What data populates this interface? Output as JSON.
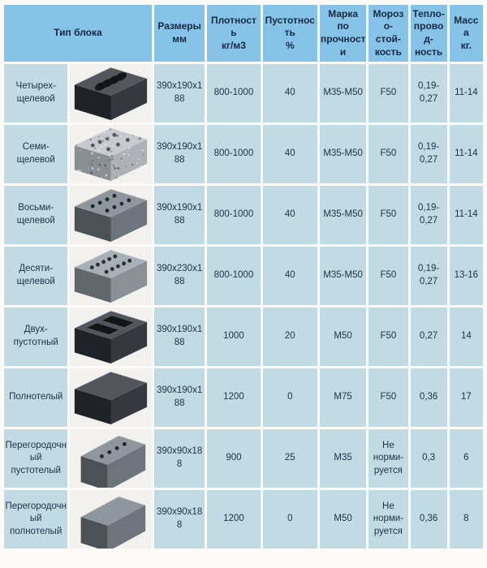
{
  "colors": {
    "page_bg": "#fbfaf7",
    "header_bg": "#87c2e9",
    "cell_bg": "#c0dbe4",
    "photo_bg": "#f3f1ee",
    "text": "#203349"
  },
  "table": {
    "headers": [
      "Тип блока",
      "Размеры\nмм",
      "Плотност\nь\nкг/м3",
      "Пустотнос\nть\n%",
      "Марка\nпо\nпрочност\nи",
      "Мороз\nо-\nстой-\nкость",
      "Тепло-\nпрово\nд-\nность",
      "Масс\nа\nкг."
    ],
    "rows": [
      {
        "type": "Четырех-\nщелевой",
        "photo_icon": "four-slot-block-photo",
        "dimensions": "390х190х1\n88",
        "density": "800-1000",
        "hollowness": "40",
        "strength": "М35-М50",
        "frost": "F50",
        "conductivity": "0,19-\n0,27",
        "mass": "11-14"
      },
      {
        "type": "Семи-\nщелевой",
        "photo_icon": "seven-slot-block-photo",
        "dimensions": "390х190х1\n88",
        "density": "800-1000",
        "hollowness": "40",
        "strength": "М35-М50",
        "frost": "F50",
        "conductivity": "0,19-\n0,27",
        "mass": "11-14"
      },
      {
        "type": "Восьми-\nщелевой",
        "photo_icon": "eight-slot-block-photo",
        "dimensions": "390х190х1\n88",
        "density": "800-1000",
        "hollowness": "40",
        "strength": "М35-М50",
        "frost": "F50",
        "conductivity": "0,19-\n0,27",
        "mass": "11-14"
      },
      {
        "type": "Десяти-\nщелевой",
        "photo_icon": "ten-slot-block-photo",
        "dimensions": "390х230х1\n88",
        "density": "800-1000",
        "hollowness": "40",
        "strength": "М35-М50",
        "frost": "F50",
        "conductivity": "0,19-\n0,27",
        "mass": "13-16"
      },
      {
        "type": "Двух-\nпустотный",
        "photo_icon": "two-hollow-block-photo",
        "dimensions": "390х190х1\n88",
        "density": "1000",
        "hollowness": "20",
        "strength": "М50",
        "frost": "F50",
        "conductivity": "0,27",
        "mass": "14"
      },
      {
        "type": "Полнотелый",
        "photo_icon": "solid-block-photo",
        "dimensions": "390х190х1\n88",
        "density": "1200",
        "hollowness": "0",
        "strength": "М75",
        "frost": "F50",
        "conductivity": "0,36",
        "mass": "17"
      },
      {
        "type": "Перегородочн\nый пустотелый",
        "photo_icon": "partition-hollow-block-photo",
        "dimensions": "390х90х18\n8",
        "density": "900",
        "hollowness": "25",
        "strength": "М35",
        "frost": "Не\nнорми-\nруется",
        "conductivity": "0,3",
        "mass": "6"
      },
      {
        "type": "Перегородочн\nый\nполнотелый",
        "photo_icon": "partition-solid-block-photo",
        "dimensions": "390х90х18\n8",
        "density": "1200",
        "hollowness": "0",
        "strength": "М50",
        "frost": "Не\nнорми-\nруется",
        "conductivity": "0,36",
        "mass": "8"
      }
    ]
  }
}
